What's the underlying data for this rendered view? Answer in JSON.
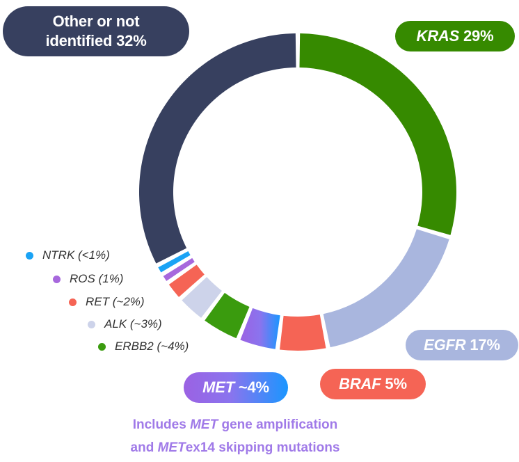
{
  "chart_data": {
    "type": "pie",
    "variant": "donut",
    "slices": [
      {
        "label": "KRAS",
        "value_text": "29%",
        "value": 29,
        "color": "#368a00"
      },
      {
        "label": "EGFR",
        "value_text": "17%",
        "value": 17,
        "color": "#a9b6de"
      },
      {
        "label": "BRAF",
        "value_text": "5%",
        "value": 5,
        "color": "#f56455"
      },
      {
        "label": "MET",
        "value_text": "~4%",
        "value": 4,
        "color": "#8a74ee"
      },
      {
        "label": "ERBB2",
        "value_text": "(~4%)",
        "value": 4,
        "color": "#3a9b0e"
      },
      {
        "label": "ALK",
        "value_text": "(~3%)",
        "value": 3,
        "color": "#cdd3ea"
      },
      {
        "label": "RET",
        "value_text": "(~2%)",
        "value": 2,
        "color": "#f56455"
      },
      {
        "label": "ROS",
        "value_text": "(1%)",
        "value": 1,
        "color": "#a768dd"
      },
      {
        "label": "NTRK",
        "value_text": "(<1%)",
        "value": 1,
        "color": "#1aa3f5"
      },
      {
        "label": "Other or not identified",
        "value_text": "32%",
        "value": 32,
        "color": "#37405f"
      }
    ]
  },
  "callouts": {
    "other_line1": "Other or not",
    "other_line2": "identified 32%",
    "kras_name": "KRAS",
    "kras_pct": "29%",
    "egfr_name": "EGFR",
    "egfr_pct": "17%",
    "braf_name": "BRAF",
    "braf_pct": "5%",
    "met_name": "MET",
    "met_pct": "~4%"
  },
  "legend": [
    {
      "name": "NTRK",
      "pct": "(<1%)",
      "color": "#1aa3f5"
    },
    {
      "name": "ROS",
      "pct": "(1%)",
      "color": "#a768dd"
    },
    {
      "name": "RET",
      "pct": "(~2%)",
      "color": "#f56455"
    },
    {
      "name": "ALK",
      "pct": "(~3%)",
      "color": "#cdd3ea"
    },
    {
      "name": "ERBB2",
      "pct": "(~4%)",
      "color": "#3a9b0e"
    }
  ],
  "footnote": {
    "line1_pre": "Includes ",
    "line1_italic": "MET",
    "line1_post": " gene amplification",
    "line2_pre": "and ",
    "line2_italic": "MET",
    "line2_post": "ex14 skipping mutations"
  }
}
